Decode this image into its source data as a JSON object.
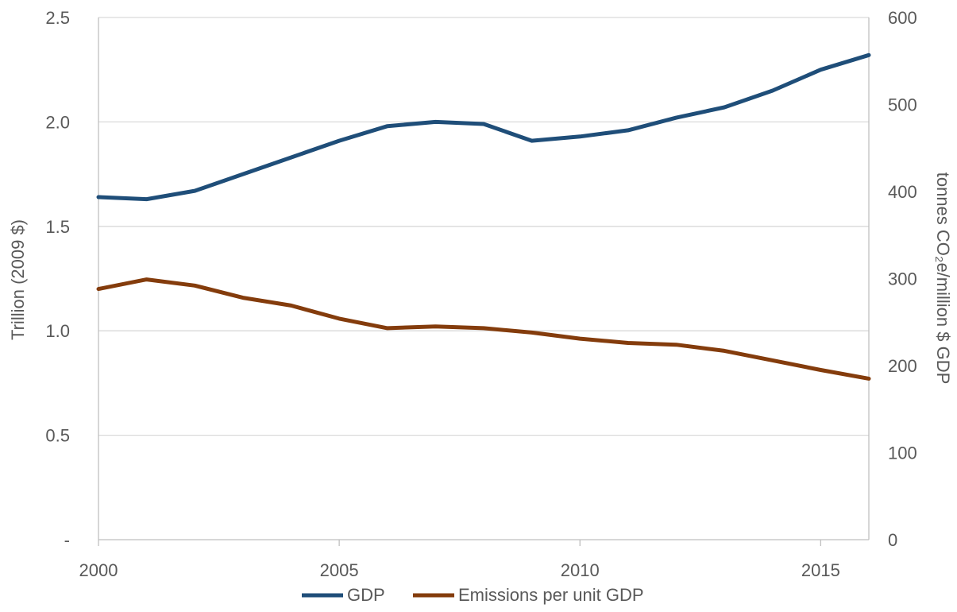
{
  "chart_data": {
    "type": "line",
    "title": "",
    "x": [
      2000,
      2001,
      2002,
      2003,
      2004,
      2005,
      2006,
      2007,
      2008,
      2009,
      2010,
      2011,
      2012,
      2013,
      2014,
      2015,
      2016
    ],
    "xticks": [
      "2000",
      "2005",
      "2010",
      "2015"
    ],
    "xlim": [
      2000,
      2016
    ],
    "ylabel_left": "Trillion (2009 $)",
    "ylim_left": [
      0,
      2.5
    ],
    "yticks_left": [
      "-",
      "0.5",
      "1.0",
      "1.5",
      "2.0",
      "2.5"
    ],
    "ylabel_right": "tonnes CO₂e/million $ GDP",
    "ylim_right": [
      0,
      600
    ],
    "yticks_right": [
      "0",
      "100",
      "200",
      "300",
      "400",
      "500",
      "600"
    ],
    "grid": true,
    "legend_position": "bottom",
    "series": [
      {
        "name": "GDP",
        "axis": "left",
        "color": "#1F4E79",
        "values": [
          1.64,
          1.63,
          1.67,
          1.75,
          1.83,
          1.91,
          1.98,
          2.0,
          1.99,
          1.91,
          1.93,
          1.96,
          2.02,
          2.07,
          2.15,
          2.25,
          2.32
        ]
      },
      {
        "name": "Emissions per unit GDP",
        "axis": "right",
        "color": "#843C0C",
        "values": [
          288,
          299,
          292,
          278,
          269,
          254,
          243,
          245,
          243,
          238,
          231,
          226,
          224,
          217,
          206,
          195,
          185
        ]
      }
    ]
  }
}
